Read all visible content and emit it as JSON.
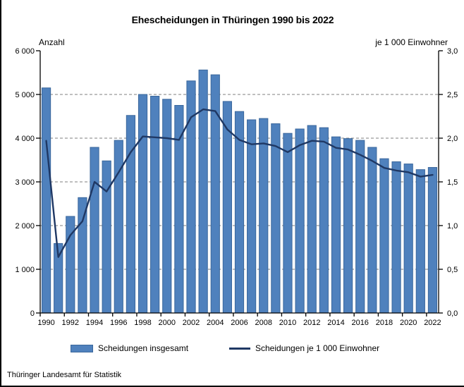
{
  "title": "Ehescheidungen in Thüringen 1990 bis 2022",
  "source": "Thüringer Landesamt für Statistik",
  "left_axis": {
    "label": "Anzahl",
    "tick_labels": [
      "6 000",
      "5 000",
      "4 000",
      "3 000",
      "2 000",
      "1 000",
      "0"
    ],
    "min": 0,
    "max": 6000,
    "step": 1000
  },
  "right_axis": {
    "label": "je 1 000 Einwohner",
    "tick_labels": [
      "3,0",
      "2,5",
      "2,0",
      "1,5",
      "1,0",
      "0,5",
      "0,0"
    ],
    "min": 0,
    "max": 3.0,
    "step": 0.5
  },
  "legend": [
    {
      "label": "Scheidungen insgesamt",
      "type": "bar"
    },
    {
      "label": "Scheidungen je 1 000 Einwohner",
      "type": "line"
    }
  ],
  "colors": {
    "bar_fill": "#4F81BD",
    "bar_border": "#3A679C",
    "line": "#1F3864",
    "grid": "#7F7F7F",
    "axis": "#000000"
  },
  "chart_data": {
    "type": "bar",
    "subtype": "bar-and-line-dual-axis",
    "title": "Ehescheidungen in Thüringen 1990 bis 2022",
    "categories": [
      1990,
      1991,
      1992,
      1993,
      1994,
      1995,
      1996,
      1997,
      1998,
      1999,
      2000,
      2001,
      2002,
      2003,
      2004,
      2005,
      2006,
      2007,
      2008,
      2009,
      2010,
      2011,
      2012,
      2013,
      2014,
      2015,
      2016,
      2017,
      2018,
      2019,
      2020,
      2021,
      2022
    ],
    "x_tick_labels": [
      "1990",
      "1992",
      "1994",
      "1996",
      "1998",
      "2000",
      "2002",
      "2004",
      "2006",
      "2008",
      "2010",
      "2012",
      "2014",
      "2016",
      "2018",
      "2020",
      "2022"
    ],
    "series": [
      {
        "name": "Scheidungen insgesamt",
        "type": "bar",
        "axis": "left",
        "values": [
          5150,
          1590,
          2210,
          2640,
          3790,
          3480,
          3950,
          4520,
          5000,
          4960,
          4890,
          4750,
          5310,
          5560,
          5450,
          4840,
          4610,
          4420,
          4450,
          4330,
          4110,
          4210,
          4290,
          4240,
          4030,
          3990,
          3950,
          3790,
          3530,
          3460,
          3410,
          3280,
          3330
        ]
      },
      {
        "name": "Scheidungen je 1 000 Einwohner",
        "type": "line",
        "axis": "right",
        "values": [
          1.97,
          0.64,
          0.89,
          1.05,
          1.5,
          1.39,
          1.61,
          1.84,
          2.02,
          2.01,
          2.0,
          1.98,
          2.24,
          2.33,
          2.31,
          2.1,
          1.98,
          1.93,
          1.94,
          1.91,
          1.84,
          1.92,
          1.97,
          1.96,
          1.89,
          1.87,
          1.81,
          1.74,
          1.66,
          1.63,
          1.61,
          1.56,
          1.58
        ]
      }
    ],
    "left_ylim": [
      0,
      6000
    ],
    "right_ylim": [
      0,
      3.0
    ],
    "grid": "horizontal dashed, at left-axis steps 1000–5000",
    "legend_position": "bottom"
  }
}
